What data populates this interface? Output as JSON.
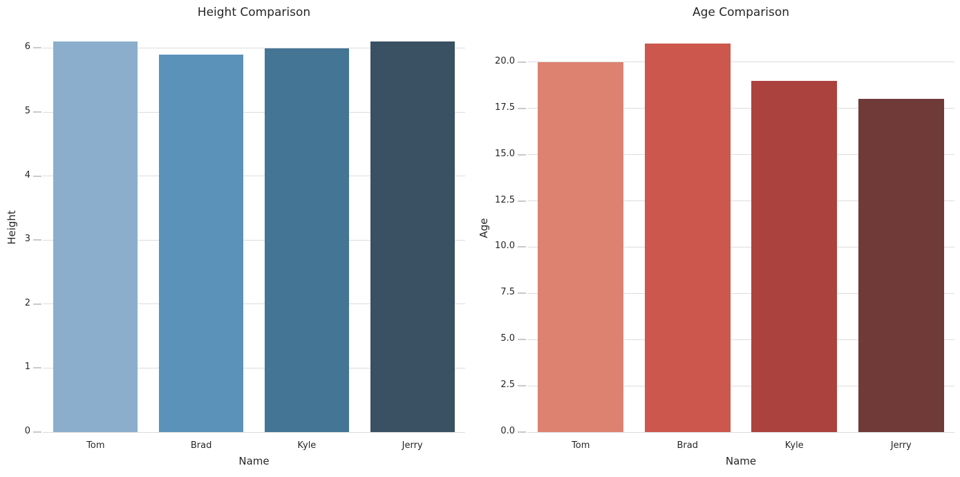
{
  "figure": {
    "background": "#ffffff",
    "grid_color": "#dcdcdc",
    "tick_color": "#c9c9c9",
    "text_color": "#262626"
  },
  "chart_data": [
    {
      "type": "bar",
      "title": "Height Comparison",
      "xlabel": "Name",
      "ylabel": "Height",
      "categories": [
        "Tom",
        "Brad",
        "Kyle",
        "Jerry"
      ],
      "values": [
        6.1,
        5.9,
        6.0,
        6.1
      ],
      "yticks": [
        0,
        1,
        2,
        3,
        4,
        5,
        6
      ],
      "ytick_labels": [
        "0",
        "1",
        "2",
        "3",
        "4",
        "5",
        "6"
      ],
      "ylim": [
        0,
        6.405
      ],
      "grid": true,
      "legend": "none",
      "bar_colors": [
        "#8aaecc",
        "#5b92ba",
        "#447595",
        "#3a5063"
      ]
    },
    {
      "type": "bar",
      "title": "Age Comparison",
      "xlabel": "Name",
      "ylabel": "Age",
      "categories": [
        "Tom",
        "Brad",
        "Kyle",
        "Jerry"
      ],
      "values": [
        20,
        21,
        19,
        18
      ],
      "yticks": [
        0,
        2.5,
        5,
        7.5,
        10,
        12.5,
        15,
        17.5,
        20
      ],
      "ytick_labels": [
        "0.0",
        "2.5",
        "5.0",
        "7.5",
        "10.0",
        "12.5",
        "15.0",
        "17.5",
        "20.0"
      ],
      "ylim": [
        0,
        22.05
      ],
      "grid": true,
      "legend": "none",
      "bar_colors": [
        "#dd8170",
        "#cc574d",
        "#ac423e",
        "#6f3a38"
      ]
    }
  ]
}
